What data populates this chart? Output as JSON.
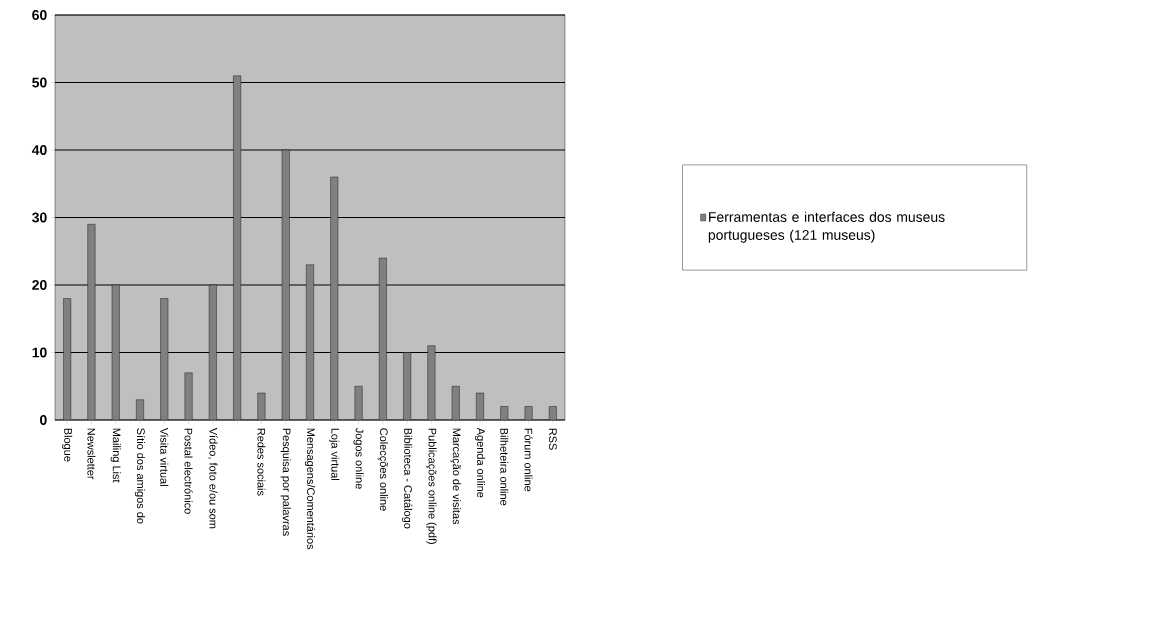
{
  "chart_data": {
    "type": "bar",
    "categories": [
      "Blogue",
      "Newsletter",
      "Mailing List",
      "Sítio dos amigos do",
      "Visita virtual",
      "Postal electrónico",
      "Vídeo, foto e/ou som",
      null,
      "Redes sociais",
      "Pesquisa por palavras",
      "Mensagens/Comentários",
      "Loja virtual",
      "Jogos online",
      "Colecções online",
      "Biblioteca - Catálogo",
      "Publicações online (pdf)",
      "Marcação de visitas",
      "Agenda online",
      "Bilheteira online",
      "Fórum online",
      "RSS"
    ],
    "series": [
      {
        "name": "Ferramentas e interfaces dos museus portugueses (121 museus)",
        "color": "#808080",
        "values": [
          18,
          29,
          20,
          3,
          18,
          7,
          20,
          51,
          4,
          40,
          23,
          36,
          5,
          24,
          10,
          11,
          5,
          4,
          2,
          2,
          2
        ]
      }
    ],
    "ylim": [
      0,
      60
    ],
    "yticks": [
      0,
      10,
      20,
      30,
      40,
      50,
      60
    ],
    "grid": "y",
    "legend": "right"
  }
}
